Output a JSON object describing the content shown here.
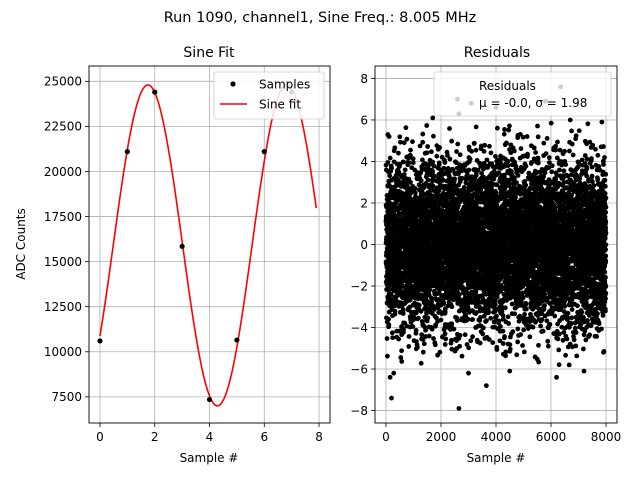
{
  "figure": {
    "suptitle": "Run 1090, channel1, Sine Freq.: 8.005 MHz"
  },
  "chart_data": [
    {
      "id": "sine",
      "type": "line",
      "title": "Sine Fit",
      "xlabel": "Sample #",
      "ylabel": "ADC Counts",
      "xlim": [
        -0.4,
        8.4
      ],
      "ylim": [
        6050,
        25850
      ],
      "xticks": [
        0,
        2,
        4,
        6,
        8
      ],
      "xtick_labels": [
        "0",
        "2",
        "4",
        "6",
        "8"
      ],
      "yticks": [
        7500,
        10000,
        12500,
        15000,
        17500,
        20000,
        22500,
        25000
      ],
      "ytick_labels": [
        "7500",
        "10000",
        "12500",
        "15000",
        "17500",
        "20000",
        "22500",
        "25000"
      ],
      "grid": true,
      "samples": {
        "name": "Samples",
        "x": [
          0,
          1,
          2,
          3,
          4,
          5,
          6,
          7
        ],
        "y": [
          10600,
          21100,
          24400,
          15850,
          7350,
          10650,
          21100,
          24400
        ],
        "color": "#000000"
      },
      "fit": {
        "name": "Sine fit",
        "color": "#ff0000",
        "offset": 15900,
        "amplitude": 8900,
        "period_samples": 5.07,
        "phase_rad": -0.6,
        "x_range": [
          0,
          7.9
        ]
      },
      "legend": {
        "location": "upper right",
        "entries": [
          "Samples",
          "Sine fit"
        ]
      }
    },
    {
      "id": "residuals",
      "type": "scatter",
      "title": "Residuals",
      "xlabel": "Sample #",
      "xlim": [
        -400,
        8400
      ],
      "ylim": [
        -8.6,
        8.6
      ],
      "xticks": [
        0,
        2000,
        4000,
        6000,
        8000
      ],
      "xtick_labels": [
        "0",
        "2000",
        "4000",
        "6000",
        "8000"
      ],
      "yticks": [
        -8,
        -6,
        -4,
        -2,
        0,
        2,
        4,
        6,
        8
      ],
      "ytick_labels": [
        "−8",
        "−6",
        "−4",
        "−2",
        "0",
        "2",
        "4",
        "6",
        "8"
      ],
      "grid": true,
      "n_points": 8000,
      "mean": -0.0,
      "sigma": 1.98,
      "color": "#000000",
      "outliers": {
        "x": [
          150,
          200,
          280,
          2650,
          3000,
          3100,
          4500,
          5800,
          6350,
          6700,
          7850,
          7200,
          2600,
          4000,
          2650,
          1700,
          3650,
          6200
        ],
        "y": [
          -6.4,
          -7.4,
          -6.2,
          -7.9,
          -6.2,
          6.8,
          -6.1,
          6.9,
          7.6,
          6.0,
          5.9,
          -6.1,
          7.0,
          6.6,
          6.3,
          6.1,
          -6.8,
          -6.4
        ]
      },
      "legend": {
        "location": "upper right",
        "label": "Residuals",
        "mu_label": "μ = -0.0, ",
        "sigma_label": "σ = 1.98"
      }
    }
  ]
}
